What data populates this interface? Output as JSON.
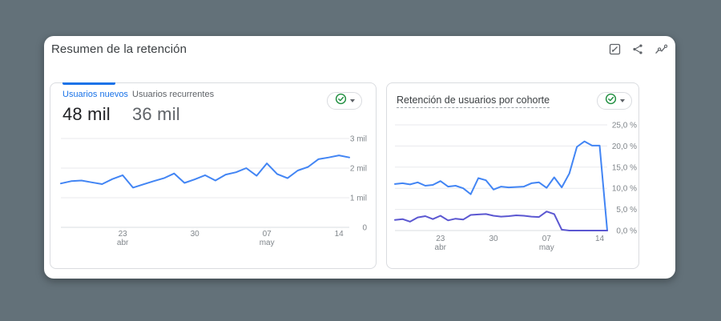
{
  "header": {
    "title": "Resumen de la retención",
    "actions": [
      {
        "name": "edit",
        "icon": "edit-icon"
      },
      {
        "name": "share",
        "icon": "share-icon"
      },
      {
        "name": "insights",
        "icon": "insights-icon"
      }
    ]
  },
  "left_card": {
    "tabs": [
      {
        "label": "Usuarios nuevos",
        "value": "48 mil",
        "active": true
      },
      {
        "label": "Usuarios recurrentes",
        "value": "36 mil",
        "active": false
      }
    ]
  },
  "right_card": {
    "title": "Retención de usuarios por cohorte"
  },
  "colors": {
    "accent_blue": "#1a73e8",
    "line_blue": "#4285f4",
    "line_purple": "#5b57d1",
    "check_green": "#1e8e3e",
    "grid": "#e8eaed",
    "axis_text": "#80868b",
    "background": "#637179"
  },
  "chart_data": [
    {
      "id": "new-users",
      "type": "line",
      "title": "Usuarios nuevos",
      "x_range": [
        "17 abr",
        "15 may"
      ],
      "ylim": [
        0,
        3000
      ],
      "grid": true,
      "legend": "none",
      "series": [
        {
          "color": "#4285f4",
          "values": [
            1480,
            1560,
            1580,
            1520,
            1460,
            1630,
            1760,
            1340,
            1450,
            1560,
            1660,
            1820,
            1500,
            1620,
            1760,
            1580,
            1780,
            1860,
            2000,
            1740,
            2160,
            1800,
            1660,
            1920,
            2040,
            2300,
            2360,
            2430,
            2360
          ]
        }
      ],
      "yticks": [
        {
          "value": 0,
          "label": "0"
        },
        {
          "value": 1000,
          "label": "1 mil"
        },
        {
          "value": 2000,
          "label": "2 mil"
        },
        {
          "value": 3000,
          "label": "3 mil"
        }
      ],
      "xticks": [
        {
          "index": 6,
          "label": "23",
          "sublabel": "abr"
        },
        {
          "index": 13,
          "label": "30",
          "sublabel": ""
        },
        {
          "index": 20,
          "label": "07",
          "sublabel": "may"
        },
        {
          "index": 27,
          "label": "14",
          "sublabel": ""
        }
      ]
    },
    {
      "id": "cohort-retention",
      "type": "line",
      "title": "Retención de usuarios por cohorte",
      "x_range": [
        "17 abr",
        "15 may"
      ],
      "ylim": [
        0,
        25
      ],
      "grid": true,
      "legend": "none",
      "series": [
        {
          "color": "#4285f4",
          "values": [
            11.0,
            11.2,
            10.9,
            11.4,
            10.6,
            10.8,
            11.7,
            10.4,
            10.6,
            10.0,
            8.6,
            12.4,
            11.9,
            9.7,
            10.4,
            10.2,
            10.3,
            10.4,
            11.2,
            11.4,
            10.1,
            12.6,
            10.2,
            13.5,
            19.8,
            21.1,
            20.1,
            20.1,
            0.0
          ]
        },
        {
          "color": "#5b57d1",
          "values": [
            2.5,
            2.7,
            2.1,
            3.1,
            3.4,
            2.7,
            3.5,
            2.4,
            2.8,
            2.6,
            3.7,
            3.8,
            3.9,
            3.5,
            3.3,
            3.4,
            3.6,
            3.5,
            3.3,
            3.2,
            4.5,
            3.9,
            0.2,
            0.0,
            0.0,
            0.0,
            0.0,
            0.0,
            0.0
          ]
        }
      ],
      "yticks": [
        {
          "value": 0,
          "label": "0,0 %"
        },
        {
          "value": 5,
          "label": "5,0 %"
        },
        {
          "value": 10,
          "label": "10,0 %"
        },
        {
          "value": 15,
          "label": "15,0 %"
        },
        {
          "value": 20,
          "label": "20,0 %"
        },
        {
          "value": 25,
          "label": "25,0 %"
        }
      ],
      "xticks": [
        {
          "index": 6,
          "label": "23",
          "sublabel": "abr"
        },
        {
          "index": 13,
          "label": "30",
          "sublabel": ""
        },
        {
          "index": 20,
          "label": "07",
          "sublabel": "may"
        },
        {
          "index": 27,
          "label": "14",
          "sublabel": ""
        }
      ]
    }
  ]
}
